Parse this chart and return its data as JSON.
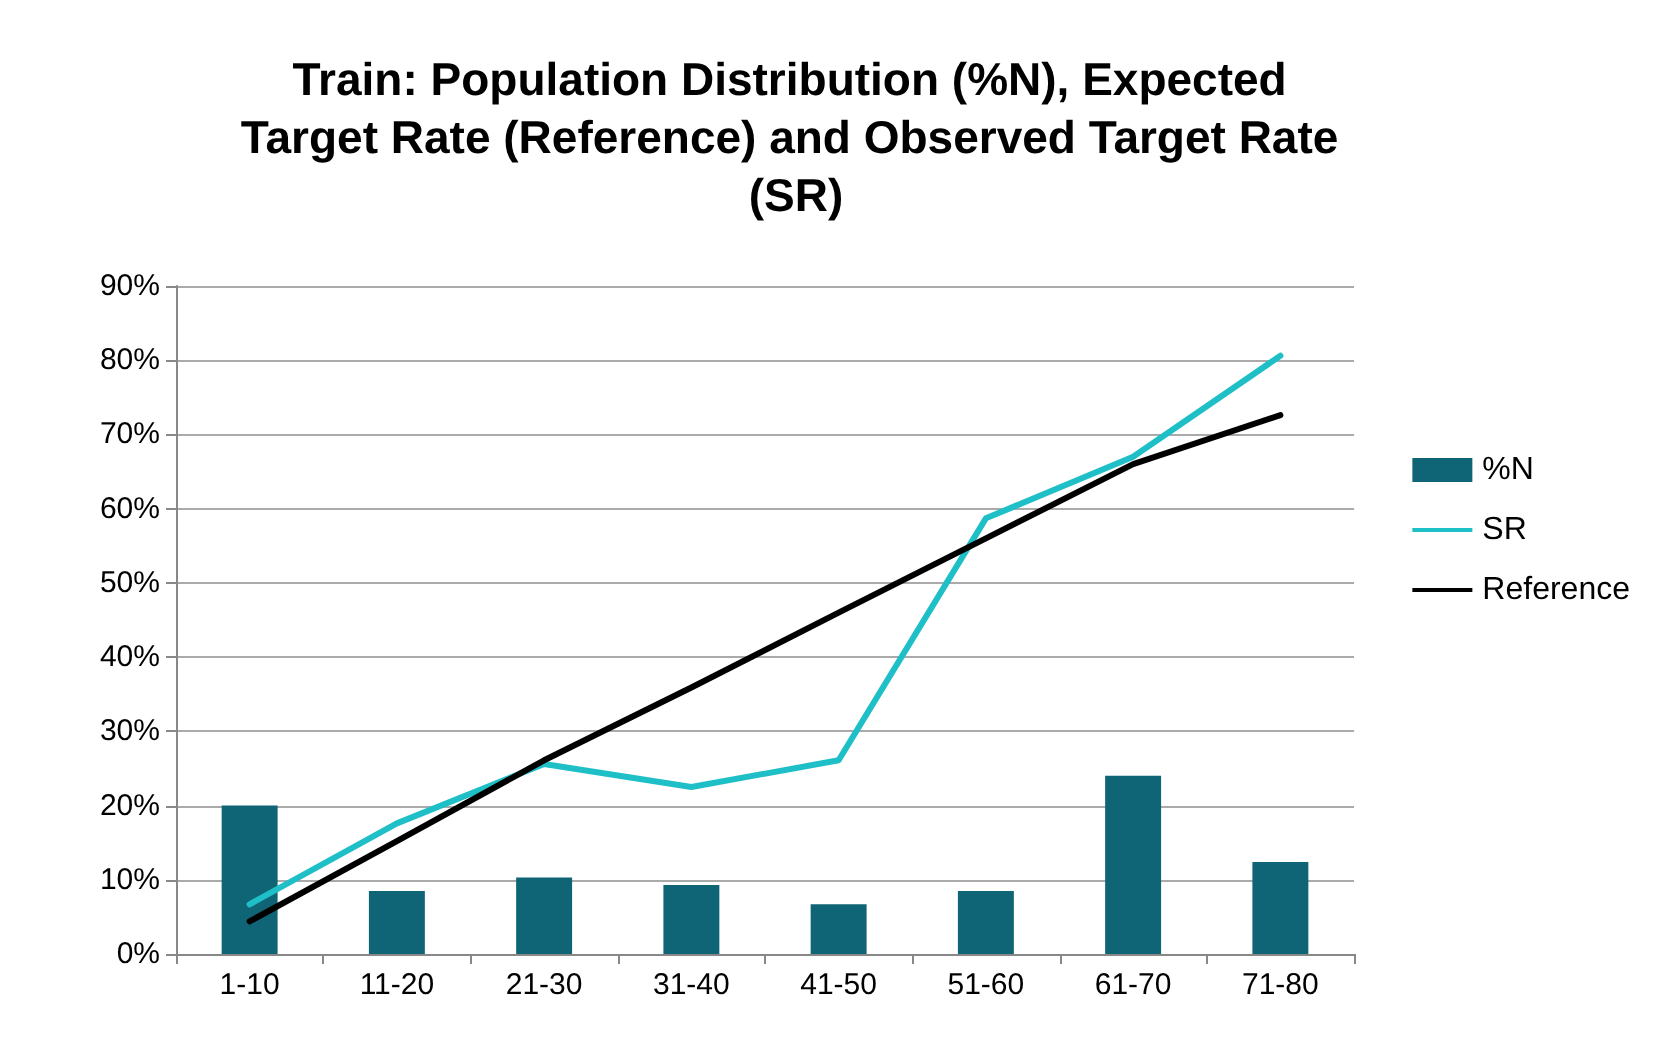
{
  "chart_data": {
    "type": "bar",
    "title": "Train: Population Distribution (%N), Expected Target Rate (Reference) and Observed Target Rate (SR)",
    "categories": [
      "1-10",
      "11-20",
      "21-30",
      "31-40",
      "41-50",
      "51-60",
      "61-70",
      "71-80"
    ],
    "series": [
      {
        "name": "%N",
        "color": "#0f6475",
        "values": [
          20,
          8.5,
          10.3,
          9.3,
          6.7,
          8.5,
          24,
          12.4
        ]
      },
      {
        "name": "SR",
        "type": "line",
        "color": "#1fbfc8",
        "values": [
          6.7,
          17.6,
          25.6,
          22.5,
          26.1,
          58.7,
          67,
          80.6
        ]
      },
      {
        "name": "Reference",
        "type": "line",
        "color": "#000000",
        "values": [
          4.4,
          15.2,
          26.1,
          35.9,
          46,
          56,
          66,
          72.6
        ]
      }
    ],
    "ylim": [
      0,
      90
    ],
    "yticks": [
      {
        "value": 0,
        "label": "0%"
      },
      {
        "value": 10,
        "label": "10%"
      },
      {
        "value": 20,
        "label": "20%"
      },
      {
        "value": 30,
        "label": "30%"
      },
      {
        "value": 40,
        "label": "40%"
      },
      {
        "value": 50,
        "label": "50%"
      },
      {
        "value": 60,
        "label": "60%"
      },
      {
        "value": 70,
        "label": "70%"
      },
      {
        "value": 80,
        "label": "80%"
      },
      {
        "value": 90,
        "label": "90%"
      }
    ],
    "grid": "y",
    "legend": "right",
    "marker": "none",
    "line_style": "solid"
  }
}
